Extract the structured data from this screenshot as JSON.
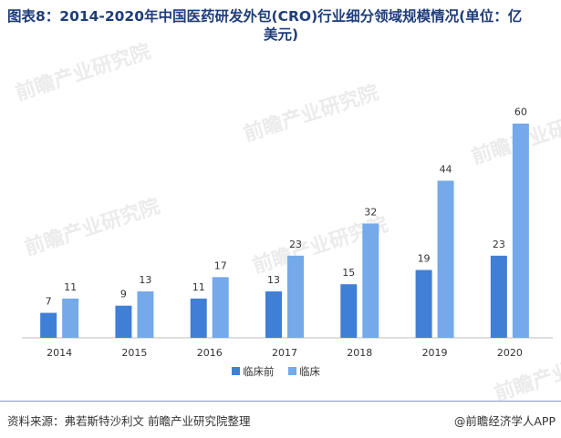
{
  "title": {
    "line1": "图表8：2014-2020年中国医药研发外包(CRO)行业细分领域规模情况(单位：亿",
    "line2": "美元)"
  },
  "chart_data": {
    "type": "bar",
    "categories": [
      "2014",
      "2015",
      "2016",
      "2017",
      "2018",
      "2019",
      "2020"
    ],
    "series": [
      {
        "name": "临床前",
        "values": [
          7,
          9,
          11,
          13,
          15,
          19,
          23
        ],
        "color": "#3f7fd6"
      },
      {
        "name": "临床",
        "values": [
          11,
          13,
          17,
          23,
          32,
          44,
          60
        ],
        "color": "#74a9ea"
      }
    ],
    "ylim": [
      0,
      64
    ],
    "grid": false,
    "legend": "bottom-center"
  },
  "footer": {
    "source": "资料来源：弗若斯特沙利文 前瞻产业研究院整理",
    "brand": "@前瞻经济学人APP"
  },
  "watermark": {
    "text": "前瞻产业研究院",
    "color": "#dcdcdc"
  }
}
